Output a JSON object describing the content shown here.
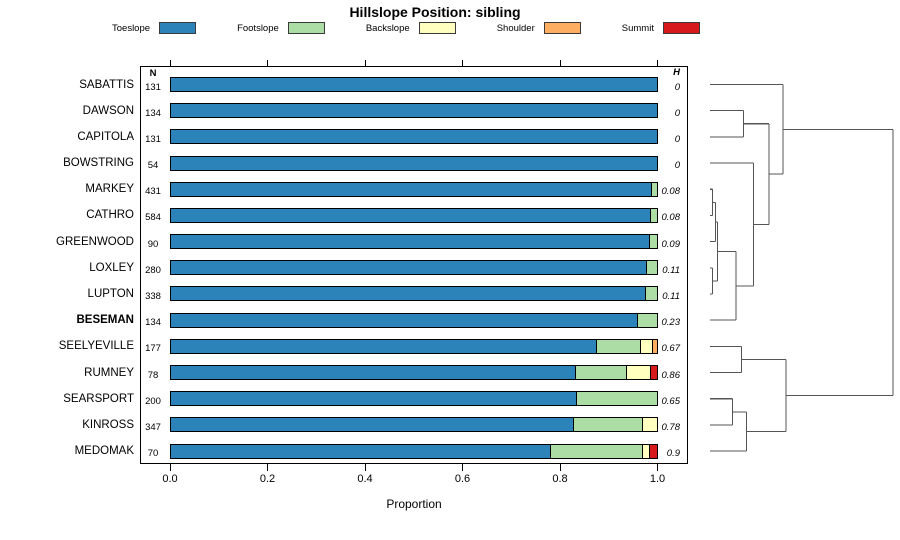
{
  "title": "Hillslope Position: sibling",
  "legend": {
    "items": [
      {
        "label": "Toeslope",
        "color": "#2B83BA"
      },
      {
        "label": "Footslope",
        "color": "#ABDDA4"
      },
      {
        "label": "Backslope",
        "color": "#FFFFBF"
      },
      {
        "label": "Shoulder",
        "color": "#FDAE61"
      },
      {
        "label": "Summit",
        "color": "#D7191C"
      }
    ]
  },
  "columns": {
    "n_header": "N",
    "h_header": "H"
  },
  "chart_data": {
    "type": "bar",
    "orientation": "horizontal",
    "stacked": true,
    "title": "Hillslope Position: sibling",
    "xlabel": "Proportion",
    "xlim": [
      0,
      1
    ],
    "x_ticks": [
      0,
      0.2,
      0.4,
      0.6,
      0.8,
      1.0
    ],
    "x_tick_labels": [
      "0.0",
      "0.2",
      "0.4",
      "0.6",
      "0.8",
      "1.0"
    ],
    "legend_position": "top",
    "grid": false,
    "categories": [
      "SABATTIS",
      "DAWSON",
      "CAPITOLA",
      "BOWSTRING",
      "MARKEY",
      "CATHRO",
      "GREENWOOD",
      "LOXLEY",
      "LUPTON",
      "BESEMAN",
      "SEELYEVILLE",
      "RUMNEY",
      "SEARSPORT",
      "KINROSS",
      "MEDOMAK"
    ],
    "bold_category": "BESEMAN",
    "n_values": [
      131,
      134,
      131,
      54,
      431,
      584,
      90,
      280,
      338,
      134,
      177,
      78,
      200,
      347,
      70
    ],
    "h_values": [
      "0",
      "0",
      "0",
      "0",
      "0.08",
      "0.08",
      "0.09",
      "0.11",
      "0.11",
      "0.23",
      "0.67",
      "0.86",
      "0.65",
      "0.78",
      "0.9"
    ],
    "series": [
      {
        "name": "Toeslope",
        "color": "#2B83BA",
        "values": [
          1,
          1,
          1,
          1,
          0.988,
          0.986,
          0.984,
          0.979,
          0.976,
          0.96,
          0.876,
          0.832,
          0.835,
          0.827,
          0.78
        ]
      },
      {
        "name": "Footslope",
        "color": "#ABDDA4",
        "values": [
          0,
          0,
          0,
          0,
          0.012,
          0.014,
          0.016,
          0.021,
          0.024,
          0.04,
          0.089,
          0.106,
          0.165,
          0.144,
          0.19
        ]
      },
      {
        "name": "Backslope",
        "color": "#FFFFBF",
        "values": [
          0,
          0,
          0,
          0,
          0,
          0,
          0,
          0,
          0,
          0,
          0.026,
          0.049,
          0,
          0.029,
          0.015
        ]
      },
      {
        "name": "Shoulder",
        "color": "#FDAE61",
        "values": [
          0,
          0,
          0,
          0,
          0,
          0,
          0,
          0,
          0,
          0,
          0.009,
          0,
          0,
          0,
          0
        ]
      },
      {
        "name": "Summit",
        "color": "#D7191C",
        "values": [
          0,
          0,
          0,
          0,
          0,
          0,
          0,
          0,
          0,
          0,
          0,
          0.013,
          0,
          0,
          0.015
        ]
      }
    ],
    "dendrogram": {
      "line_color": "#555555",
      "merges": [
        {
          "id": "nMC",
          "a": "MARKEY",
          "b": "CATHRO",
          "h": 0.013
        },
        {
          "id": "nMCG",
          "a": "nMC",
          "b": "GREENWOOD",
          "h": 0.03
        },
        {
          "id": "nLL",
          "a": "LOXLEY",
          "b": "LUPTON",
          "h": 0.013
        },
        {
          "id": "n4",
          "a": "nMCG",
          "b": "nLL",
          "h": 0.041
        },
        {
          "id": "n5",
          "a": "n4",
          "b": "BESEMAN",
          "h": 0.142
        },
        {
          "id": "nBOW",
          "a": "BOWSTRING",
          "b": "n5",
          "h": 0.238
        },
        {
          "id": "nDC",
          "a": "DAWSON",
          "b": "CAPITOLA",
          "h": 0.183
        },
        {
          "id": "nX",
          "a": "nDC",
          "b": "nBOW",
          "h": 0.322
        },
        {
          "id": "nSAB",
          "a": "SABATTIS",
          "b": "nX",
          "h": 0.399
        },
        {
          "id": "nSR",
          "a": "SEELYEVILLE",
          "b": "RUMNEY",
          "h": 0.172
        },
        {
          "id": "nSK",
          "a": "SEARSPORT",
          "b": "KINROSS",
          "h": 0.123
        },
        {
          "id": "nSKM",
          "a": "nSK",
          "b": "MEDOMAK",
          "h": 0.199
        },
        {
          "id": "nBot",
          "a": "nSR",
          "b": "nSKM",
          "h": 0.415
        },
        {
          "id": "root",
          "a": "nSAB",
          "b": "nBot",
          "h": 1.0
        }
      ]
    }
  }
}
